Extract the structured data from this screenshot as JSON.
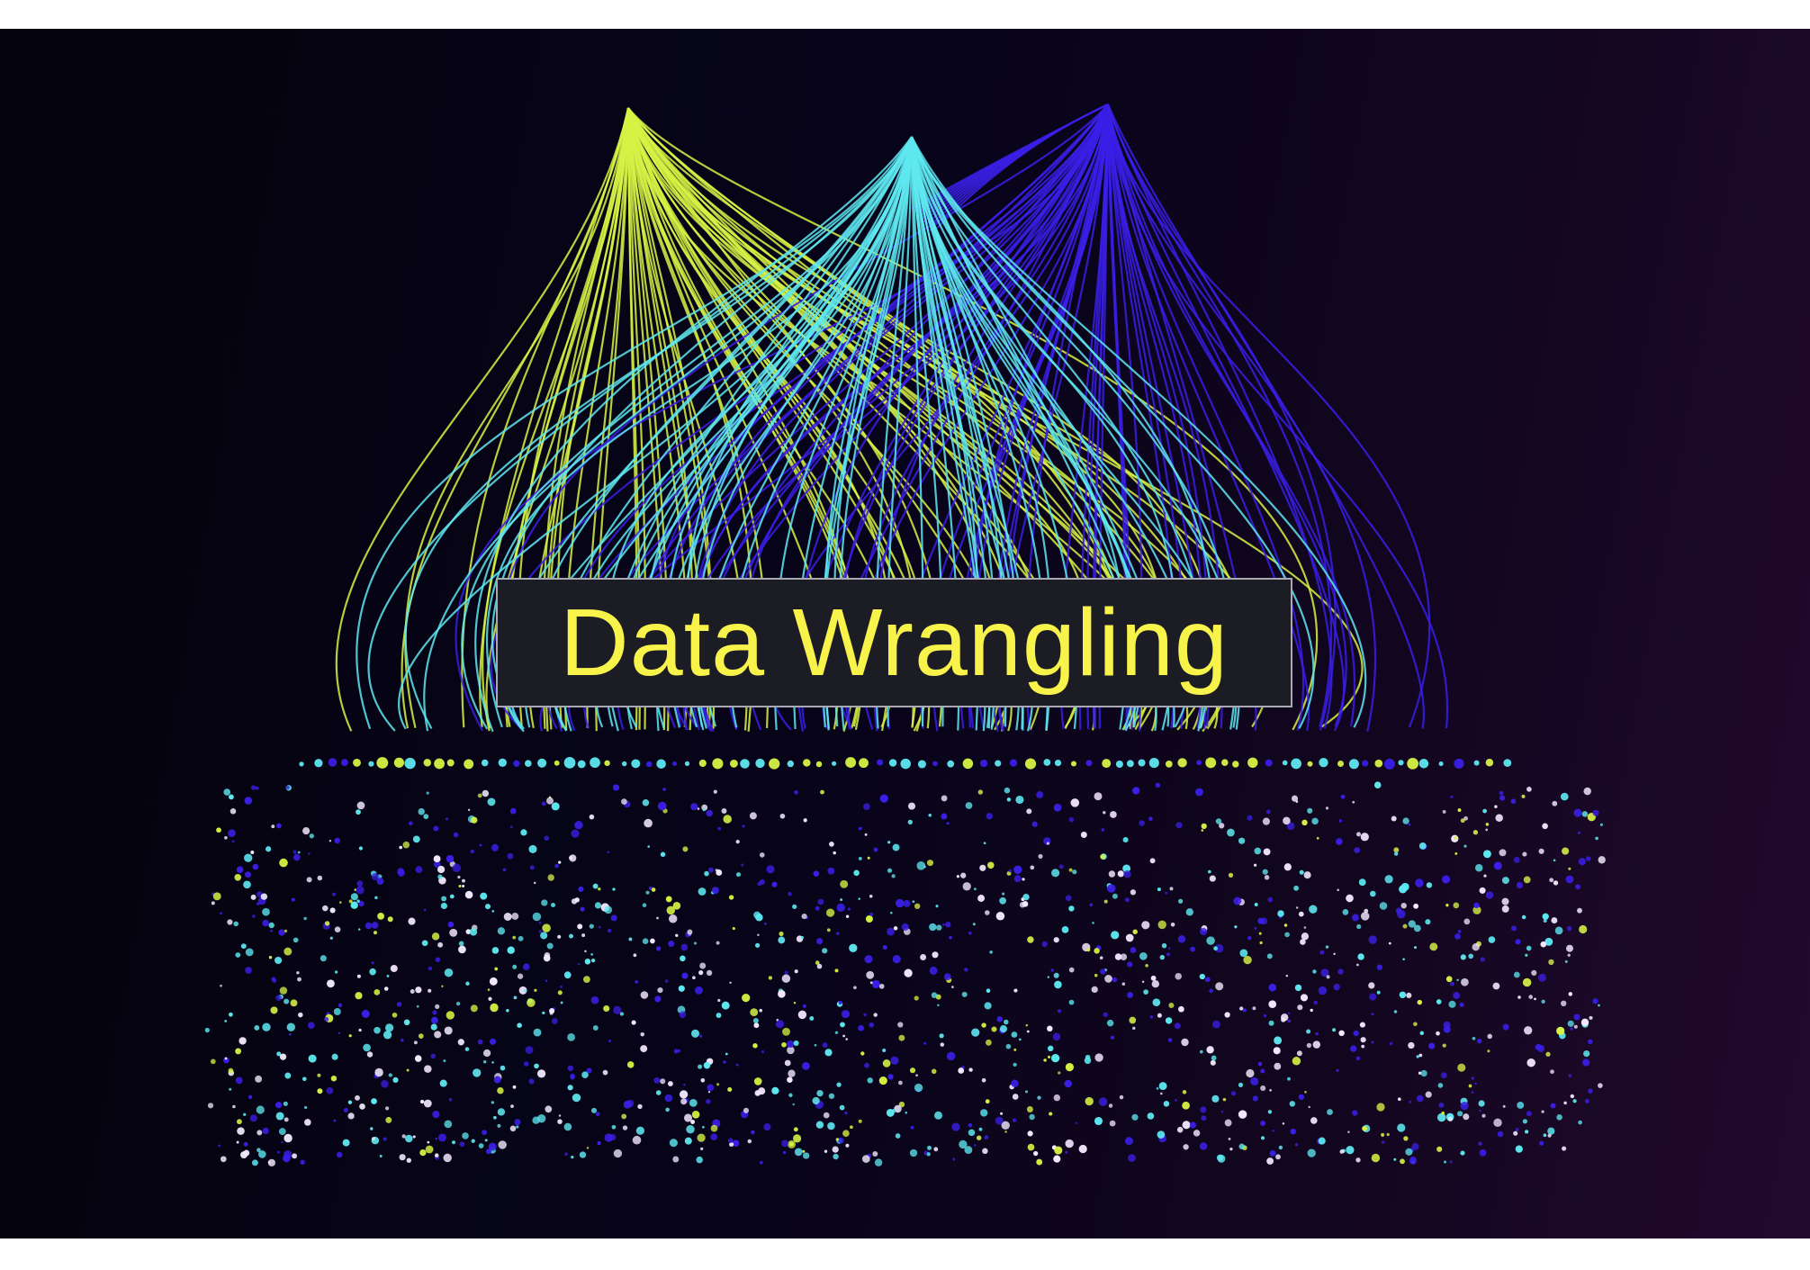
{
  "title": "Data Wrangling",
  "palette": {
    "background_dark": "#05030d",
    "background_purple": "#22092e",
    "lime": "#d7f244",
    "cyan": "#5ee8f0",
    "blue": "#3a1fe6",
    "white_dot": "#f4e9ff",
    "title_text": "#f7f34a",
    "title_box": "#1b1c24"
  },
  "illustration": {
    "description_icon": "network-arcs-and-particles",
    "line_groups": [
      "lime",
      "cyan",
      "blue"
    ]
  }
}
